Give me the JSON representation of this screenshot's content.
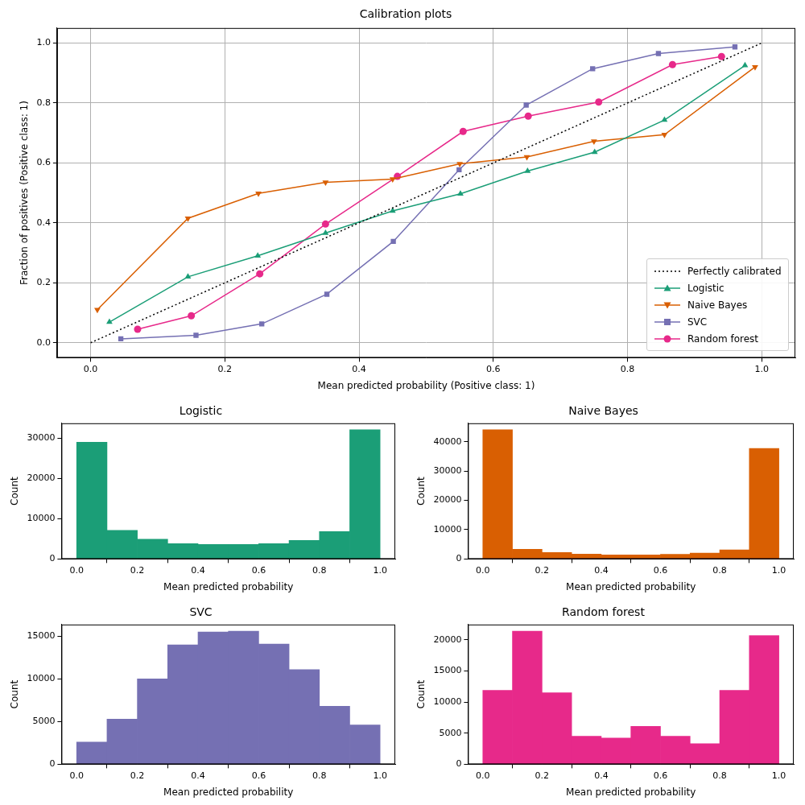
{
  "chart_data": [
    {
      "type": "line",
      "title": "Calibration plots",
      "x_label": "Mean predicted probability (Positive class: 1)",
      "y_label": "Fraction of positives (Positive class: 1)",
      "xlim": [
        -0.05,
        1.05
      ],
      "ylim": [
        -0.05,
        1.05
      ],
      "xticks": [
        {
          "value": 0,
          "label": "0.0"
        },
        0.2,
        0.4,
        0.6,
        0.8,
        {
          "value": 1,
          "label": "1.0"
        }
      ],
      "yticks": [
        {
          "value": 0,
          "label": "0.0"
        },
        0.2,
        0.4,
        0.6,
        0.8,
        {
          "value": 1,
          "label": "1.0"
        }
      ],
      "grid": true,
      "legend": "lower right",
      "series": [
        {
          "name": "Perfectly calibrated",
          "color": "#000000",
          "marker": "none",
          "line_style": "dotted",
          "x": [
            0,
            1
          ],
          "values": [
            0,
            1
          ]
        },
        {
          "name": "Logistic",
          "color": "#1b9e77",
          "marker": "triangle-up",
          "line_style": "solid",
          "x": [
            0.028,
            0.145,
            0.249,
            0.35,
            0.45,
            0.551,
            0.651,
            0.751,
            0.855,
            0.975
          ],
          "values": [
            0.069,
            0.22,
            0.29,
            0.366,
            0.44,
            0.497,
            0.573,
            0.636,
            0.743,
            0.925
          ]
        },
        {
          "name": "Naive Bayes",
          "color": "#d95f02",
          "marker": "triangle-down",
          "line_style": "solid",
          "x": [
            0.01,
            0.145,
            0.25,
            0.35,
            0.45,
            0.55,
            0.65,
            0.75,
            0.855,
            0.99
          ],
          "values": [
            0.11,
            0.415,
            0.498,
            0.535,
            0.546,
            0.597,
            0.62,
            0.672,
            0.694,
            0.92
          ]
        },
        {
          "name": "SVC",
          "color": "#7570b3",
          "marker": "square",
          "line_style": "solid",
          "x": [
            0.045,
            0.157,
            0.255,
            0.352,
            0.451,
            0.549,
            0.649,
            0.748,
            0.846,
            0.96
          ],
          "values": [
            0.013,
            0.025,
            0.063,
            0.162,
            0.338,
            0.577,
            0.793,
            0.914,
            0.965,
            0.987
          ]
        },
        {
          "name": "Random forest",
          "color": "#e7298a",
          "marker": "circle",
          "line_style": "solid",
          "x": [
            0.07,
            0.15,
            0.252,
            0.35,
            0.457,
            0.555,
            0.652,
            0.757,
            0.867,
            0.94
          ],
          "values": [
            0.045,
            0.09,
            0.23,
            0.396,
            0.555,
            0.705,
            0.756,
            0.803,
            0.928,
            0.955
          ]
        }
      ]
    },
    {
      "type": "histogram",
      "title": "Logistic",
      "x_label": "Mean predicted probability",
      "y_label": "Count",
      "bins": [
        0,
        0.1,
        0.2,
        0.3,
        0.4,
        0.5,
        0.6,
        0.7,
        0.8,
        0.9,
        1
      ],
      "values": [
        29000,
        7100,
        4900,
        3800,
        3600,
        3600,
        3800,
        4600,
        6800,
        32100
      ],
      "color": "#1b9e77",
      "xlim": [
        -0.05,
        1.05
      ],
      "xticks": [
        {
          "value": 0,
          "label": "0.0"
        },
        0.2,
        0.4,
        0.6,
        0.8,
        {
          "value": 1,
          "label": "1.0"
        }
      ],
      "ylim": [
        0,
        33705
      ],
      "yticks": [
        0,
        10000,
        20000,
        30000
      ],
      "grid": false
    },
    {
      "type": "histogram",
      "title": "Naive Bayes",
      "x_label": "Mean predicted probability",
      "y_label": "Count",
      "bins": [
        0,
        0.1,
        0.2,
        0.3,
        0.4,
        0.5,
        0.6,
        0.7,
        0.8,
        0.9,
        1
      ],
      "values": [
        44100,
        3300,
        2200,
        1700,
        1400,
        1400,
        1600,
        2000,
        3100,
        37700
      ],
      "color": "#d95f02",
      "xlim": [
        -0.05,
        1.05
      ],
      "xticks": [
        {
          "value": 0,
          "label": "0.0"
        },
        0.2,
        0.4,
        0.6,
        0.8,
        {
          "value": 1,
          "label": "1.0"
        }
      ],
      "ylim": [
        0,
        46305
      ],
      "yticks": [
        0,
        10000,
        20000,
        30000,
        40000
      ],
      "grid": false
    },
    {
      "type": "histogram",
      "title": "SVC",
      "x_label": "Mean predicted probability",
      "y_label": "Count",
      "bins": [
        0,
        0.1,
        0.2,
        0.3,
        0.4,
        0.5,
        0.6,
        0.7,
        0.8,
        0.9,
        1
      ],
      "values": [
        2600,
        5300,
        10000,
        14000,
        15500,
        15600,
        14100,
        11100,
        6800,
        4600
      ],
      "color": "#7570b3",
      "xlim": [
        -0.05,
        1.05
      ],
      "xticks": [
        {
          "value": 0,
          "label": "0.0"
        },
        0.2,
        0.4,
        0.6,
        0.8,
        {
          "value": 1,
          "label": "1.0"
        }
      ],
      "ylim": [
        0,
        16380
      ],
      "yticks": [
        0,
        5000,
        10000,
        15000
      ],
      "grid": false
    },
    {
      "type": "histogram",
      "title": "Random forest",
      "x_label": "Mean predicted probability",
      "y_label": "Count",
      "bins": [
        0,
        0.1,
        0.2,
        0.3,
        0.4,
        0.5,
        0.6,
        0.7,
        0.8,
        0.9,
        1
      ],
      "values": [
        11900,
        21400,
        11500,
        4500,
        4200,
        6100,
        4500,
        3300,
        11900,
        20700
      ],
      "color": "#e7298a",
      "xlim": [
        -0.05,
        1.05
      ],
      "xticks": [
        {
          "value": 0,
          "label": "0.0"
        },
        0.2,
        0.4,
        0.6,
        0.8,
        {
          "value": 1,
          "label": "1.0"
        }
      ],
      "ylim": [
        0,
        22470
      ],
      "yticks": [
        0,
        5000,
        10000,
        15000,
        20000
      ],
      "grid": false
    }
  ]
}
